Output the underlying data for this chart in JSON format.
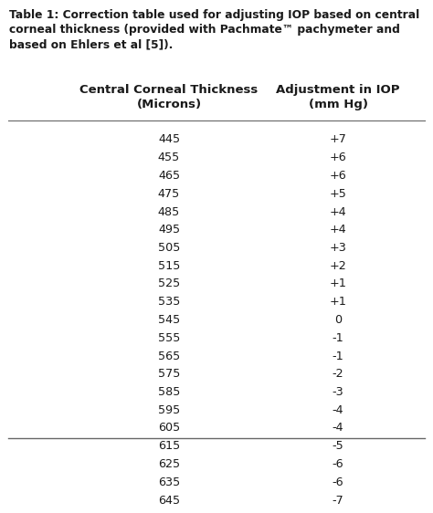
{
  "title_line1": "Table 1: Correction table used for adjusting IOP based on central",
  "title_line2": "corneal thickness (provided with Pachmate™ pachymeter and",
  "title_line3": "based on Ehlers et al [5]).",
  "col1_header_line1": "Central Corneal Thickness",
  "col1_header_line2": "(Microns)",
  "col2_header_line1": "Adjustment in IOP",
  "col2_header_line2": "(mm Hg)",
  "thicknesses": [
    445,
    455,
    465,
    475,
    485,
    495,
    505,
    515,
    525,
    535,
    545,
    555,
    565,
    575,
    585,
    595,
    605,
    615,
    625,
    635,
    645
  ],
  "adjustments": [
    "+7",
    "+6",
    "+6",
    "+5",
    "+4",
    "+4",
    "+3",
    "+2",
    "+1",
    "+1",
    "0",
    "-1",
    "-1",
    "-2",
    "-3",
    "-4",
    "-4",
    "-5",
    "-6",
    "-6",
    "-7"
  ],
  "bg_color": "#ffffff",
  "text_color": "#1a1a1a",
  "title_fontsize": 8.8,
  "header_fontsize": 9.5,
  "data_fontsize": 9.2,
  "fig_width": 4.74,
  "fig_height": 5.62,
  "dpi": 100
}
